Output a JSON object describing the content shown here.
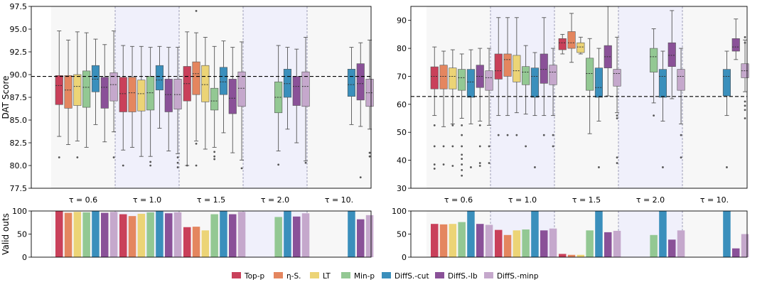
{
  "legend": {
    "items": [
      {
        "label": "Top-p",
        "color": "#c9405a"
      },
      {
        "label": "η-S.",
        "color": "#e4865f"
      },
      {
        "label": "LT",
        "color": "#ecd476"
      },
      {
        "label": "Min-p",
        "color": "#93c893"
      },
      {
        "label": "DiffS.-cut",
        "color": "#3a8fbc"
      },
      {
        "label": "DiffS.-lb",
        "color": "#8a5198"
      },
      {
        "label": "DiffS.-minp",
        "color": "#c5a8cc"
      }
    ]
  },
  "chart_data": [
    {
      "type": "boxplot",
      "panel": "left-top",
      "ylabel": "DAT Score",
      "ylim": [
        77.5,
        97.5
      ],
      "yticks": [
        "77.5",
        "80.0",
        "82.5",
        "85.0",
        "87.5",
        "90.0",
        "92.5",
        "95.0",
        "97.5"
      ],
      "reference_line": 89.8,
      "groups": [
        "τ = 0.6",
        "τ = 1.0",
        "τ = 1.5",
        "τ = 2.0",
        "τ = 10."
      ],
      "series": [
        {
          "name": "Top-p",
          "boxes": [
            [
              83.2,
              86.7,
              88.8,
              89.9,
              94.8
            ],
            [
              81.7,
              85.9,
              87.9,
              89.7,
              93.2
            ],
            [
              80.0,
              87.1,
              89.0,
              90.9,
              94.7
            ],
            null,
            null
          ],
          "outliers": [
            [
              80.9
            ],
            [
              80.0
            ],
            [
              80.0
            ],
            [],
            []
          ]
        },
        {
          "name": "η-S.",
          "boxes": [
            [
              82.3,
              86.3,
              88.3,
              89.9,
              93.8
            ],
            [
              82.0,
              85.9,
              88.0,
              89.7,
              93.1
            ],
            [
              82.7,
              87.8,
              90.1,
              91.4,
              94.6
            ],
            null,
            null
          ],
          "outliers": [
            [],
            [],
            [
              97.0,
              82.4,
              80.0
            ],
            [],
            []
          ]
        },
        {
          "name": "LT",
          "boxes": [
            [
              82.7,
              86.6,
              88.7,
              90.0,
              94.7
            ],
            [
              81.0,
              86.0,
              87.9,
              89.4,
              93.1
            ],
            [
              81.8,
              87.0,
              88.9,
              91.0,
              94.1
            ],
            null,
            null
          ],
          "outliers": [
            [
              80.9
            ],
            [],
            [],
            [],
            []
          ]
        },
        {
          "name": "Min-p",
          "boxes": [
            [
              82.0,
              86.4,
              88.6,
              90.4,
              94.6
            ],
            [
              81.0,
              86.1,
              88.0,
              89.8,
              93.0
            ],
            [
              82.0,
              86.1,
              87.1,
              88.5,
              93.1
            ],
            [
              81.6,
              85.8,
              87.5,
              89.2,
              93.2
            ],
            null
          ],
          "outliers": [
            [],
            [
              80.0,
              80.4
            ],
            [
              81.0,
              81.5,
              80.7
            ],
            [
              80.1
            ],
            []
          ]
        },
        {
          "name": "DiffS.-cut",
          "boxes": [
            [
              84.5,
              88.1,
              89.5,
              91.0,
              93.9
            ],
            [
              84.1,
              88.3,
              89.4,
              91.0,
              93.1
            ],
            [
              83.6,
              87.8,
              89.2,
              90.8,
              93.7
            ],
            [
              84.0,
              87.5,
              89.0,
              90.6,
              93.0
            ],
            [
              84.5,
              87.6,
              88.9,
              90.6,
              93.0
            ]
          ],
          "outliers": [
            [],
            [],
            [],
            [],
            []
          ]
        },
        {
          "name": "DiffS.-lb",
          "boxes": [
            [
              82.6,
              86.3,
              88.6,
              89.7,
              93.3
            ],
            [
              81.6,
              85.9,
              87.8,
              89.5,
              93.0
            ],
            [
              81.4,
              85.7,
              87.4,
              89.5,
              93.0
            ],
            [
              82.5,
              86.6,
              88.7,
              89.8,
              92.8
            ],
            [
              84.3,
              87.2,
              89.0,
              91.2,
              93.5
            ]
          ],
          "outliers": [
            [],
            [],
            [],
            [],
            [
              78.7
            ]
          ]
        },
        {
          "name": "DiffS.-minp",
          "boxes": [
            [
              83.7,
              87.1,
              88.9,
              90.2,
              94.8
            ],
            [
              81.3,
              86.2,
              87.8,
              89.5,
              93.0
            ],
            [
              80.6,
              86.5,
              88.5,
              90.3,
              93.6
            ],
            [
              80.5,
              86.5,
              88.7,
              90.3,
              94.1
            ],
            [
              84.0,
              86.5,
              88.0,
              89.5,
              93.8
            ]
          ],
          "outliers": [
            [
              80.9
            ],
            [
              79.8,
              80.3,
              80.9
            ],
            [
              79.7
            ],
            [
              80.3
            ],
            [
              81.4,
              81.0
            ]
          ]
        }
      ]
    },
    {
      "type": "boxplot",
      "panel": "right-top",
      "ylabel": "",
      "ylim": [
        30,
        95
      ],
      "yticks": [
        "30",
        "40",
        "50",
        "60",
        "70",
        "80",
        "90"
      ],
      "reference_line": 62.8,
      "groups": [
        "τ = 0.6",
        "τ = 1.0",
        "τ = 1.5",
        "τ = 2.0",
        "τ = 10."
      ],
      "series": [
        {
          "name": "Top-p",
          "boxes": [
            [
              56.0,
              65.5,
              70.0,
              73.4,
              80.5
            ],
            [
              56.0,
              69.0,
              72.0,
              78.0,
              91.0
            ],
            [
              78.0,
              79.5,
              82.0,
              83.5,
              85.0
            ],
            null,
            null
          ],
          "outliers": [
            [
              52.5,
              45.0,
              38.5,
              37.0
            ],
            [
              49.0
            ],
            [],
            [],
            []
          ]
        },
        {
          "name": "η-S.",
          "boxes": [
            [
              52.0,
              65.5,
              70.0,
              74.0,
              79.0
            ],
            [
              56.0,
              70.0,
              76.0,
              78.0,
              91.0
            ],
            [
              75.0,
              80.0,
              82.0,
              86.0,
              92.5
            ],
            null,
            null
          ],
          "outliers": [
            [
              45.0,
              38.5
            ],
            [
              49.0
            ],
            [],
            [],
            []
          ]
        },
        {
          "name": "LT",
          "boxes": [
            [
              53.0,
              65.5,
              70.0,
              73.0,
              79.5
            ],
            [
              57.0,
              68.0,
              72.0,
              77.5,
              91.0
            ],
            [
              78.0,
              78.5,
              80.5,
              82.0,
              84.0
            ],
            null,
            null
          ],
          "outliers": [
            [
              52.5,
              45.0,
              38.0
            ],
            [
              49.0
            ],
            [],
            [],
            []
          ]
        },
        {
          "name": "Min-p",
          "boxes": [
            [
              55.0,
              65.0,
              69.5,
              72.5,
              78.0
            ],
            [
              56.5,
              67.0,
              71.5,
              73.5,
              81.0
            ],
            [
              49.5,
              65.0,
              71.0,
              76.5,
              83.5
            ],
            [
              60.5,
              71.5,
              77.0,
              80.0,
              87.0
            ],
            null
          ],
          "outliers": [
            [
              52.5,
              49.0,
              45.0,
              42.0,
              40.5,
              38.5,
              36.5,
              34.5
            ],
            [
              45.0
            ],
            [],
            [
              56.0
            ],
            []
          ]
        },
        {
          "name": "DiffS.-cut",
          "boxes": [
            [
              53.0,
              62.5,
              68.0,
              72.5,
              79.5
            ],
            [
              56.0,
              62.5,
              70.0,
              73.0,
              78.5
            ],
            [
              54.0,
              62.5,
              66.0,
              73.0,
              80.0
            ],
            [
              54.0,
              62.5,
              70.0,
              72.5,
              79.0
            ],
            [
              56.0,
              63.0,
              70.0,
              72.5,
              79.0
            ]
          ],
          "outliers": [
            [
              37.5
            ],
            [
              37.5
            ],
            [
              37.5
            ],
            [
              37.5
            ],
            [
              37.5
            ]
          ]
        },
        {
          "name": "DiffS.-lb",
          "boxes": [
            [
              54.0,
              66.0,
              70.0,
              74.0,
              80.0
            ],
            [
              56.0,
              67.5,
              72.5,
              78.0,
              91.0
            ],
            [
              63.0,
              73.0,
              77.0,
              81.0,
              95.0
            ],
            [
              62.0,
              73.5,
              77.5,
              82.0,
              93.5
            ],
            [
              76.0,
              79.0,
              80.5,
              83.5,
              90.5
            ]
          ],
          "outliers": [
            [
              52.5,
              45.0,
              39.0,
              38.0
            ],
            [
              49.0
            ],
            [],
            [],
            []
          ]
        },
        {
          "name": "DiffS.-minp",
          "boxes": [
            [
              52.5,
              65.0,
              69.5,
              72.0,
              80.0
            ],
            [
              56.0,
              67.0,
              71.5,
              74.0,
              80.0
            ],
            [
              57.0,
              66.5,
              71.0,
              72.5,
              84.0
            ],
            [
              53.0,
              65.0,
              70.0,
              72.5,
              80.0
            ],
            [
              64.5,
              69.5,
              72.0,
              74.5,
              83.0
            ]
          ],
          "outliers": [
            [
              45.0,
              39.0
            ],
            [
              49.0,
              45.0
            ],
            [
              56.0,
              55.0,
              41.0,
              39.0
            ],
            [
              49.0,
              41.0
            ],
            [
              84.0,
              82.0,
              61.0,
              59.5,
              58.0,
              55.0
            ]
          ]
        }
      ]
    },
    {
      "type": "bar",
      "panel": "left-bottom",
      "ylabel": "Valid outs",
      "ylim": [
        0,
        100
      ],
      "yticks": [
        "0",
        "50",
        "100"
      ],
      "groups": [
        "τ = 0.6",
        "τ = 1.0",
        "τ = 1.5",
        "τ = 2.0",
        "τ = 10."
      ],
      "series": [
        {
          "name": "Top-p",
          "values": [
            100,
            93,
            65,
            null,
            null
          ]
        },
        {
          "name": "η-S.",
          "values": [
            96,
            89,
            66,
            null,
            null
          ]
        },
        {
          "name": "LT",
          "values": [
            98,
            94,
            58,
            null,
            null
          ]
        },
        {
          "name": "Min-p",
          "values": [
            97,
            97,
            93,
            87,
            null
          ]
        },
        {
          "name": "DiffS.-cut",
          "values": [
            100,
            100,
            100,
            100,
            100
          ]
        },
        {
          "name": "DiffS.-lb",
          "values": [
            96,
            95,
            93,
            88,
            82
          ]
        },
        {
          "name": "DiffS.-minp",
          "values": [
            98,
            97,
            98,
            95,
            91
          ]
        }
      ]
    },
    {
      "type": "bar",
      "panel": "right-bottom",
      "ylabel": "",
      "ylim": [
        0,
        100
      ],
      "yticks": [
        "0",
        "50",
        "100"
      ],
      "groups": [
        "τ = 0.6",
        "τ = 1.0",
        "τ = 1.5",
        "τ = 2.0",
        "τ = 10."
      ],
      "series": [
        {
          "name": "Top-p",
          "values": [
            72,
            59,
            7,
            null,
            null
          ]
        },
        {
          "name": "η-S.",
          "values": [
            71,
            48,
            5,
            null,
            null
          ]
        },
        {
          "name": "LT",
          "values": [
            72,
            58,
            5,
            null,
            null
          ]
        },
        {
          "name": "Min-p",
          "values": [
            76,
            60,
            58,
            48,
            null
          ]
        },
        {
          "name": "DiffS.-cut",
          "values": [
            100,
            100,
            100,
            100,
            100
          ]
        },
        {
          "name": "DiffS.-lb",
          "values": [
            72,
            58,
            54,
            38,
            19
          ]
        },
        {
          "name": "DiffS.-minp",
          "values": [
            70,
            62,
            57,
            58,
            50
          ]
        }
      ]
    }
  ]
}
